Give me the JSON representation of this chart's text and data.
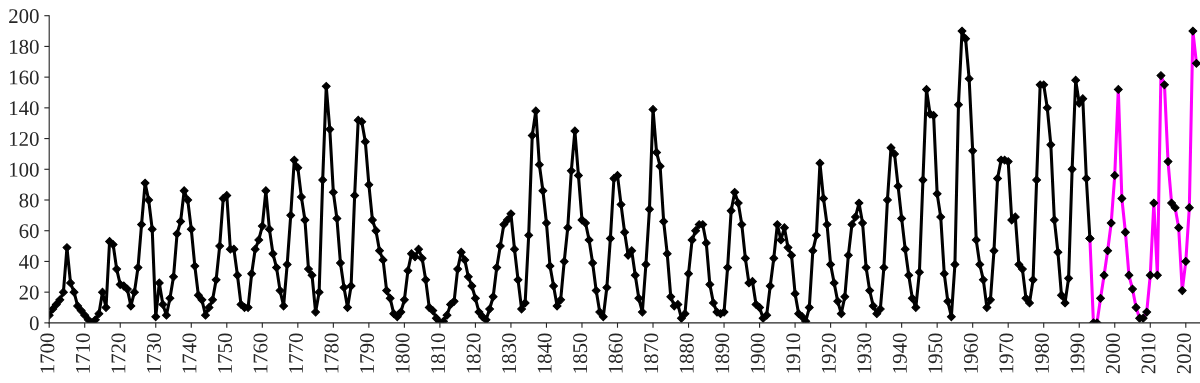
{
  "chart_data": {
    "type": "line",
    "marker": "diamond",
    "line_style": "solid",
    "grid": false,
    "legend": false,
    "xlim": [
      1700,
      2024
    ],
    "xticks": [
      1700,
      1710,
      1720,
      1730,
      1740,
      1750,
      1760,
      1770,
      1780,
      1790,
      1800,
      1810,
      1820,
      1830,
      1840,
      1850,
      1860,
      1870,
      1880,
      1890,
      1900,
      1910,
      1920,
      1930,
      1940,
      1950,
      1960,
      1970,
      1980,
      1990,
      2000,
      2010,
      2020
    ],
    "ylim": [
      0,
      200
    ],
    "yticks": [
      0,
      20,
      40,
      60,
      80,
      100,
      120,
      140,
      160,
      180,
      200
    ],
    "series": [
      {
        "color": "#000000",
        "x": [
          1700,
          1701,
          1702,
          1703,
          1704,
          1705,
          1706,
          1707,
          1708,
          1709,
          1710,
          1711,
          1712,
          1713,
          1714,
          1715,
          1716,
          1717,
          1718,
          1719,
          1720,
          1721,
          1722,
          1723,
          1724,
          1725,
          1726,
          1727,
          1728,
          1729,
          1730,
          1731,
          1732,
          1733,
          1734,
          1735,
          1736,
          1737,
          1738,
          1739,
          1740,
          1741,
          1742,
          1743,
          1744,
          1745,
          1746,
          1747,
          1748,
          1749,
          1750,
          1751,
          1752,
          1753,
          1754,
          1755,
          1756,
          1757,
          1758,
          1759,
          1760,
          1761,
          1762,
          1763,
          1764,
          1765,
          1766,
          1767,
          1768,
          1769,
          1770,
          1771,
          1772,
          1773,
          1774,
          1775,
          1776,
          1777,
          1778,
          1779,
          1780,
          1781,
          1782,
          1783,
          1784,
          1785,
          1786,
          1787,
          1788,
          1789,
          1790,
          1791,
          1792,
          1793,
          1794,
          1795,
          1796,
          1797,
          1798,
          1799,
          1800,
          1801,
          1802,
          1803,
          1804,
          1805,
          1806,
          1807,
          1808,
          1809,
          1810,
          1811,
          1812,
          1813,
          1814,
          1815,
          1816,
          1817,
          1818,
          1819,
          1820,
          1821,
          1822,
          1823,
          1824,
          1825,
          1826,
          1827,
          1828,
          1829,
          1830,
          1831,
          1832,
          1833,
          1834,
          1835,
          1836,
          1837,
          1838,
          1839,
          1840,
          1841,
          1842,
          1843,
          1844,
          1845,
          1846,
          1847,
          1848,
          1849,
          1850,
          1851,
          1852,
          1853,
          1854,
          1855,
          1856,
          1857,
          1858,
          1859,
          1860,
          1861,
          1862,
          1863,
          1864,
          1865,
          1866,
          1867,
          1868,
          1869,
          1870,
          1871,
          1872,
          1873,
          1874,
          1875,
          1876,
          1877,
          1878,
          1879,
          1880,
          1881,
          1882,
          1883,
          1884,
          1885,
          1886,
          1887,
          1888,
          1889,
          1890,
          1891,
          1892,
          1893,
          1894,
          1895,
          1896,
          1897,
          1898,
          1899,
          1900,
          1901,
          1902,
          1903,
          1904,
          1905,
          1906,
          1907,
          1908,
          1909,
          1910,
          1911,
          1912,
          1913,
          1914,
          1915,
          1916,
          1917,
          1918,
          1919,
          1920,
          1921,
          1922,
          1923,
          1924,
          1925,
          1926,
          1927,
          1928,
          1929,
          1930,
          1931,
          1932,
          1933,
          1934,
          1935,
          1936,
          1937,
          1938,
          1939,
          1940,
          1941,
          1942,
          1943,
          1944,
          1945,
          1946,
          1947,
          1948,
          1949,
          1950,
          1951,
          1952,
          1953,
          1954,
          1955,
          1956,
          1957,
          1958,
          1959,
          1960,
          1961,
          1962,
          1963,
          1964,
          1965,
          1966,
          1967,
          1968,
          1969,
          1970,
          1971,
          1972,
          1973,
          1974,
          1975,
          1976,
          1977,
          1978,
          1979,
          1980,
          1981,
          1982,
          1983,
          1984,
          1985,
          1986,
          1987,
          1988,
          1989,
          1990,
          1991,
          1992,
          1993
        ],
        "values": [
          5,
          9,
          12,
          15,
          20,
          49,
          26,
          20,
          11,
          8,
          5,
          2,
          0,
          2,
          6,
          20,
          10,
          53,
          51,
          35,
          25,
          24,
          22,
          11,
          20,
          36,
          64,
          91,
          80,
          61,
          4,
          26,
          12,
          5,
          16,
          30,
          58,
          66,
          86,
          80,
          61,
          37,
          18,
          15,
          5,
          10,
          15,
          28,
          50,
          81,
          83,
          48,
          48,
          31,
          12,
          10,
          10,
          32,
          48,
          54,
          63,
          86,
          61,
          45,
          36,
          21,
          11,
          38,
          70,
          106,
          101,
          82,
          67,
          35,
          31,
          7,
          20,
          93,
          154,
          126,
          85,
          68,
          39,
          23,
          10,
          24,
          83,
          132,
          131,
          118,
          90,
          67,
          60,
          47,
          41,
          21,
          16,
          6,
          4,
          7,
          15,
          34,
          45,
          43,
          48,
          42,
          28,
          10,
          8,
          3,
          0,
          1,
          5,
          12,
          14,
          35,
          46,
          41,
          30,
          24,
          16,
          7,
          4,
          2,
          9,
          17,
          36,
          50,
          64,
          67,
          71,
          48,
          28,
          9,
          13,
          57,
          122,
          138,
          103,
          86,
          65,
          37,
          24,
          11,
          15,
          40,
          62,
          99,
          125,
          96,
          67,
          65,
          54,
          39,
          21,
          7,
          4,
          23,
          55,
          94,
          96,
          77,
          59,
          44,
          47,
          31,
          16,
          7,
          38,
          74,
          139,
          111,
          102,
          66,
          45,
          17,
          11,
          12,
          3,
          6,
          32,
          54,
          60,
          64,
          64,
          52,
          25,
          13,
          7,
          6,
          7,
          36,
          73,
          85,
          78,
          64,
          42,
          26,
          27,
          12,
          10,
          3,
          5,
          24,
          42,
          64,
          54,
          62,
          49,
          44,
          19,
          6,
          4,
          1,
          10,
          47,
          57,
          104,
          81,
          64,
          38,
          26,
          14,
          6,
          17,
          44,
          64,
          69,
          78,
          65,
          36,
          21,
          11,
          6,
          9,
          36,
          80,
          114,
          110,
          89,
          68,
          48,
          31,
          16,
          10,
          33,
          93,
          152,
          136,
          135,
          84,
          69,
          32,
          14,
          4,
          38,
          142,
          190,
          185,
          159,
          112,
          54,
          38,
          28,
          10,
          15,
          47,
          94,
          106,
          106,
          105,
          67,
          69,
          38,
          35,
          16,
          13,
          28,
          93,
          155,
          155,
          140,
          116,
          67,
          46,
          18,
          13,
          29,
          100,
          158,
          143,
          146,
          94,
          55
        ]
      },
      {
        "color": "#ff00ff",
        "x": [
          1993,
          1994,
          1995,
          1996,
          1997,
          1998,
          1999,
          2000,
          2001,
          2002,
          2003,
          2004,
          2005,
          2006,
          2007,
          2008,
          2009,
          2010,
          2011,
          2012,
          2013,
          2014,
          2015,
          2016,
          2017,
          2018,
          2019,
          2020,
          2021,
          2022,
          2023
        ],
        "values": [
          55,
          0,
          0,
          16,
          31,
          47,
          65,
          96,
          152,
          81,
          59,
          31,
          22,
          10,
          3,
          3,
          7,
          31,
          78,
          31,
          161,
          155,
          105,
          78,
          75,
          62,
          21,
          40,
          75,
          190,
          169
        ]
      }
    ]
  }
}
